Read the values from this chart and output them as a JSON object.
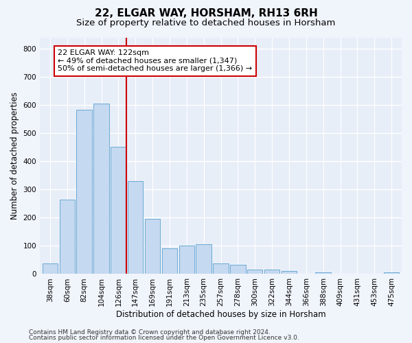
{
  "title": "22, ELGAR WAY, HORSHAM, RH13 6RH",
  "subtitle": "Size of property relative to detached houses in Horsham",
  "xlabel": "Distribution of detached houses by size in Horsham",
  "ylabel": "Number of detached properties",
  "bar_labels": [
    "38sqm",
    "60sqm",
    "82sqm",
    "104sqm",
    "126sqm",
    "147sqm",
    "169sqm",
    "191sqm",
    "213sqm",
    "235sqm",
    "257sqm",
    "278sqm",
    "300sqm",
    "322sqm",
    "344sqm",
    "366sqm",
    "388sqm",
    "409sqm",
    "431sqm",
    "453sqm",
    "475sqm"
  ],
  "bar_values": [
    38,
    265,
    585,
    607,
    452,
    330,
    197,
    92,
    102,
    106,
    38,
    33,
    16,
    16,
    10,
    0,
    7,
    0,
    0,
    0,
    7
  ],
  "bar_color": "#c5d9f0",
  "bar_edgecolor": "#6aaad4",
  "vline_color": "#cc0000",
  "annotation_text": "22 ELGAR WAY: 122sqm\n← 49% of detached houses are smaller (1,347)\n50% of semi-detached houses are larger (1,366) →",
  "annotation_box_color": "#ffffff",
  "annotation_box_edgecolor": "#cc0000",
  "ylim": [
    0,
    840
  ],
  "yticks": [
    0,
    100,
    200,
    300,
    400,
    500,
    600,
    700,
    800
  ],
  "footer_line1": "Contains HM Land Registry data © Crown copyright and database right 2024.",
  "footer_line2": "Contains public sector information licensed under the Open Government Licence v3.0.",
  "bg_color": "#f0f4fb",
  "plot_bg_color": "#e8eef8",
  "grid_color": "#ffffff",
  "title_fontsize": 11,
  "subtitle_fontsize": 9.5,
  "axis_label_fontsize": 8.5,
  "tick_fontsize": 7.5,
  "annotation_fontsize": 8,
  "footer_fontsize": 6.5
}
